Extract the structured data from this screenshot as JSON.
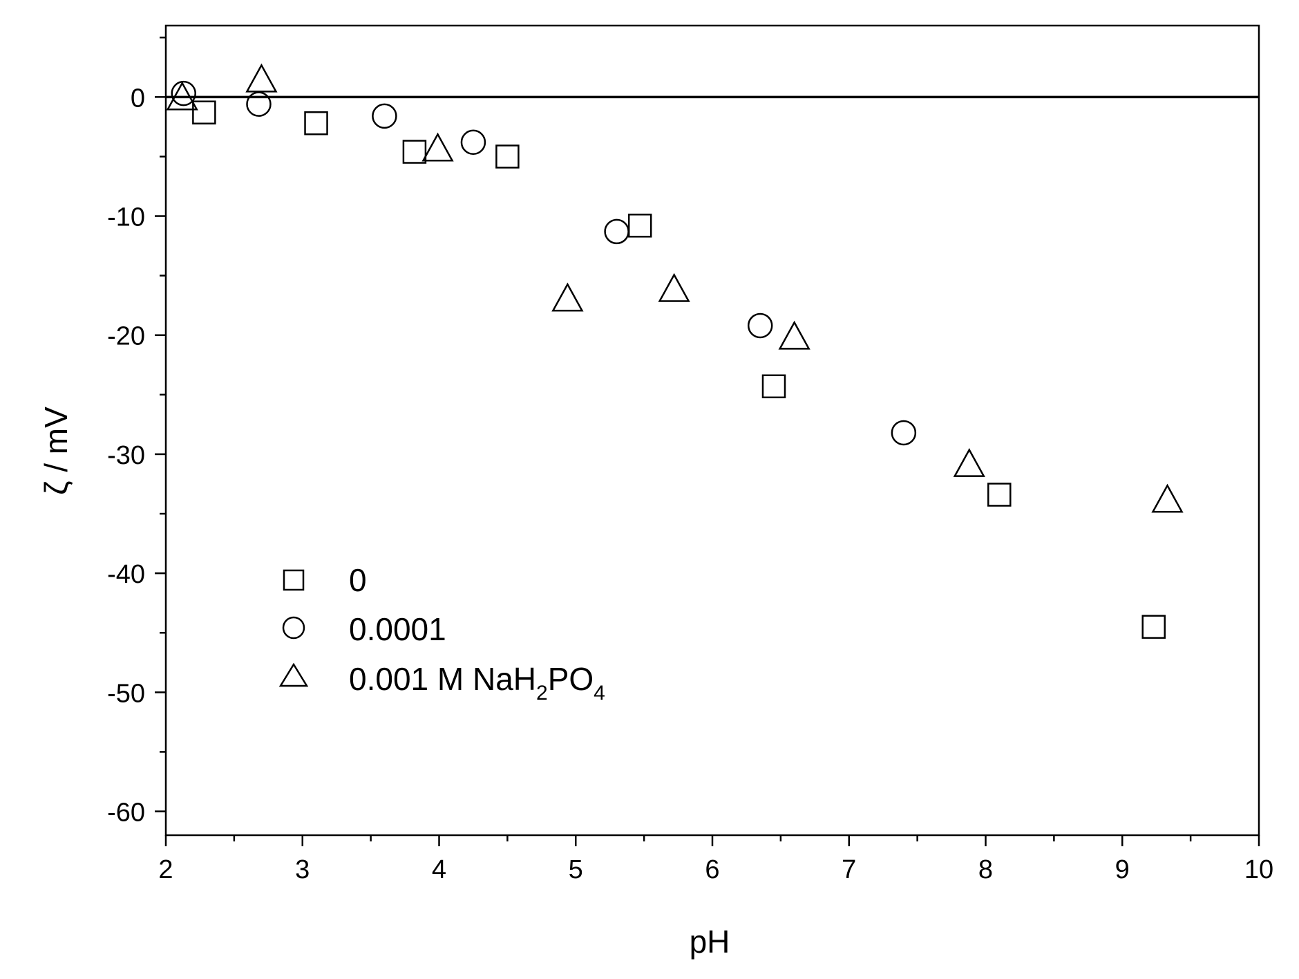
{
  "chart_data": {
    "type": "scatter",
    "xlabel": "pH",
    "ylabel": "ζ / mV",
    "xlim": [
      2,
      10
    ],
    "ylim": [
      -62,
      6
    ],
    "x_ticks": [
      2,
      3,
      4,
      5,
      6,
      7,
      8,
      9,
      10
    ],
    "y_ticks": [
      -60,
      -50,
      -40,
      -30,
      -20,
      -10,
      0
    ],
    "x_minor_step": 0.5,
    "y_minor_step": 5,
    "reference_line_y": 0,
    "grid": false,
    "legend_position": "bottom-left",
    "series": [
      {
        "name": "0",
        "marker": "square",
        "points": [
          [
            2.28,
            -1.3
          ],
          [
            3.1,
            -2.2
          ],
          [
            3.82,
            -4.6
          ],
          [
            4.5,
            -5.0
          ],
          [
            5.47,
            -10.8
          ],
          [
            6.45,
            -24.3
          ],
          [
            8.1,
            -33.4
          ],
          [
            9.23,
            -44.5
          ]
        ]
      },
      {
        "name": "0.0001",
        "marker": "circle",
        "points": [
          [
            2.13,
            0.3
          ],
          [
            2.68,
            -0.6
          ],
          [
            3.6,
            -1.6
          ],
          [
            4.25,
            -3.8
          ],
          [
            5.3,
            -11.3
          ],
          [
            6.35,
            -19.2
          ],
          [
            7.4,
            -28.2
          ]
        ]
      },
      {
        "name": "0.001 M NaH",
        "name_sub1": "2",
        "name_mid": "PO",
        "name_sub2": "4",
        "marker": "triangle",
        "points": [
          [
            2.12,
            -0.2
          ],
          [
            2.7,
            1.3
          ],
          [
            3.99,
            -4.5
          ],
          [
            4.94,
            -17.1
          ],
          [
            5.72,
            -16.3
          ],
          [
            6.6,
            -20.3
          ],
          [
            7.88,
            -31.0
          ],
          [
            9.33,
            -34.0
          ]
        ]
      }
    ]
  }
}
